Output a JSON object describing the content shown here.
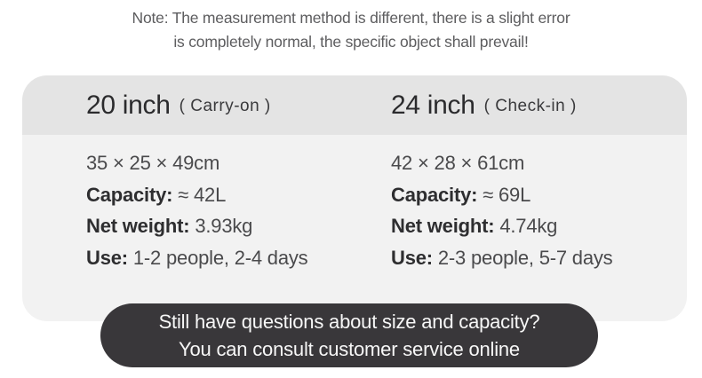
{
  "note": {
    "line1": "Note: The measurement method is different, there is a slight error",
    "line2": "is completely normal, the specific object shall prevail!"
  },
  "sizes": [
    {
      "name": "20 inch",
      "type": "( Carry-on )",
      "dimensions": "35 × 25 × 49cm",
      "capacity_label": "Capacity:",
      "capacity_value": "≈ 42L",
      "net_weight_label": "Net weight:",
      "net_weight_value": "3.93kg",
      "use_label": "Use:",
      "use_value": "1-2 people, 2-4 days"
    },
    {
      "name": "24 inch",
      "type": "( Check-in )",
      "dimensions": "42 × 28 × 61cm",
      "capacity_label": "Capacity:",
      "capacity_value": "≈ 69L",
      "net_weight_label": "Net weight:",
      "net_weight_value": "4.74kg",
      "use_label": "Use:",
      "use_value": "2-3 people, 5-7 days"
    }
  ],
  "consult_button": {
    "line1": "Still have questions about size and capacity?",
    "line2": "You can consult customer service online"
  },
  "colors": {
    "page_bg": "#ffffff",
    "card_header_bg": "#e4e4e4",
    "card_body_bg": "#f2f2f2",
    "pill_bg": "#39373a",
    "pill_text": "#f7f7f7",
    "note_text": "#5d5d5f",
    "heading_text": "#2b2b2d",
    "body_text": "#4a4a4c"
  }
}
